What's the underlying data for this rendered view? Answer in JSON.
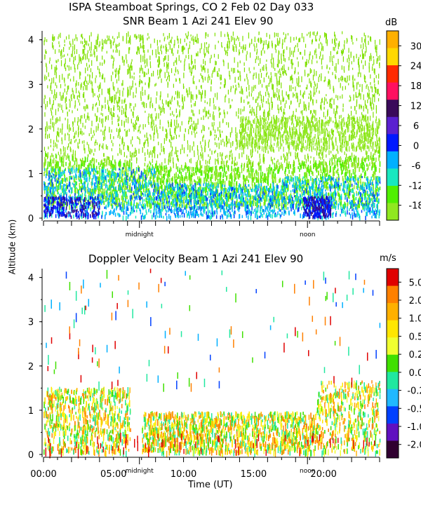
{
  "header": {
    "station_line": "ISPA Steamboat Springs, CO    2 Feb 02 Day 033"
  },
  "shared": {
    "ylabel": "Altitude (km)",
    "xlabel": "Time (UT)",
    "local_markers": [
      "midnight",
      "noon"
    ]
  },
  "chart_data": [
    {
      "type": "heatmap",
      "title": "SNR Beam 1 Azi 241 Elev 90",
      "unit": "dB",
      "ylim": [
        0,
        4.2
      ],
      "xlim": [
        0,
        24
      ],
      "y_ticks": [
        0,
        1,
        2,
        3,
        4
      ],
      "x_tick_labels": [],
      "local_marker_hours": [
        7,
        19
      ],
      "colorbar": {
        "labels": [
          "30",
          "24",
          "18",
          "12",
          "6",
          "0",
          "-6",
          "-12",
          "-18"
        ],
        "colors": [
          "#ffb000",
          "#ffd800",
          "#ff2a00",
          "#ff1060",
          "#3a0a5a",
          "#5a20d0",
          "#0018ff",
          "#00b0ff",
          "#18e8c0",
          "#50f000",
          "#90e820"
        ]
      },
      "description_layers": [
        {
          "name": "sparse noise",
          "from_km": 1.4,
          "to_km": 4.2,
          "color": "#80e010"
        },
        {
          "name": "enhanced layer",
          "from_km": 1.6,
          "to_km": 2.2,
          "color": "#90e820"
        },
        {
          "name": "boundary layer",
          "from_km": 0.0,
          "to_km": 1.2,
          "color": "#00a0ff"
        }
      ]
    },
    {
      "type": "heatmap",
      "title": "Doppler Velocity Beam 1 Azi 241 Elev 90",
      "unit": "m/s",
      "ylim": [
        0,
        4.2
      ],
      "xlim": [
        0,
        24
      ],
      "y_ticks": [
        0,
        1,
        2,
        3,
        4
      ],
      "x_tick_labels": [
        "00:00",
        "05:00",
        "10:00",
        "15:00",
        "20:00"
      ],
      "x_tick_hours": [
        0,
        5,
        10,
        15,
        20
      ],
      "local_marker_hours": [
        7,
        19
      ],
      "colorbar": {
        "labels": [
          "5.0",
          "2.0",
          "1.0",
          "0.5",
          "0.2",
          "0.0",
          "-0.2",
          "-0.5",
          "-1.0",
          "-2.0"
        ],
        "colors": [
          "#e00000",
          "#ff8000",
          "#ffb000",
          "#ffe600",
          "#f0ff30",
          "#40e000",
          "#20e8a0",
          "#20b8ff",
          "#0040ff",
          "#6010c0",
          "#300030"
        ]
      }
    }
  ]
}
